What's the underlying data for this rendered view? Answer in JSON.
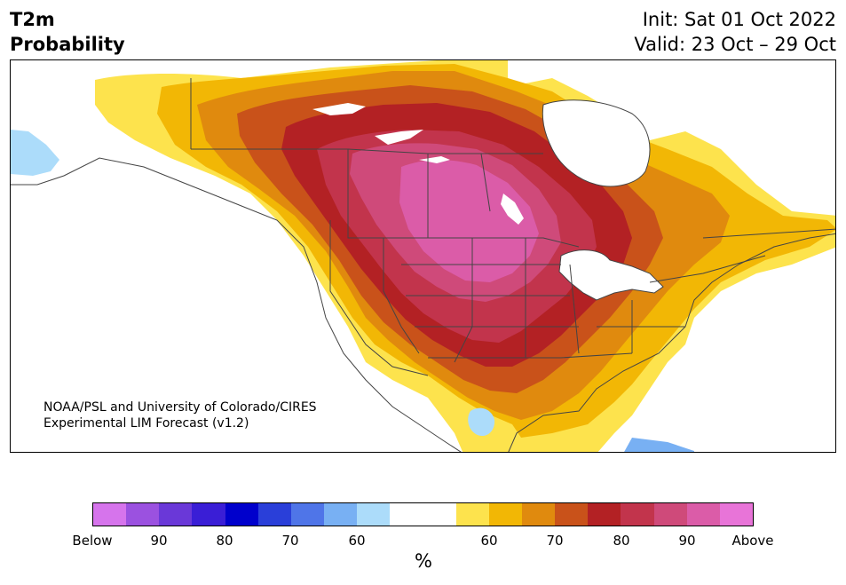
{
  "title": {
    "variable": "T2m",
    "product": "Probability",
    "init": "Init: Sat 01 Oct 2022",
    "valid": "Valid: 23 Oct – 29 Oct"
  },
  "credit": {
    "line1": "NOAA/PSL and University of Colorado/CIRES",
    "line2": "Experimental LIM Forecast (v1.2)"
  },
  "colorbar": {
    "unit": "%",
    "labels": [
      "Below",
      "90",
      "80",
      "70",
      "60",
      "60",
      "70",
      "80",
      "90",
      "Above"
    ],
    "below_colors": [
      "#d674ec",
      "#9b51e0",
      "#6a38d8",
      "#3a1ed6",
      "#0000cc",
      "#2a3fd9",
      "#4f75e8",
      "#78b0f3",
      "#acdcfa"
    ],
    "neutral_color": "#ffffff",
    "above_colors": [
      "#fde34d",
      "#f2b705",
      "#e08a0e",
      "#c9521a",
      "#b32124",
      "#c2344c",
      "#cf4a7a",
      "#db5ca8",
      "#e874d8"
    ]
  },
  "map": {
    "region": "North America",
    "border_color": "#444444",
    "water_color": "#ffffff"
  }
}
